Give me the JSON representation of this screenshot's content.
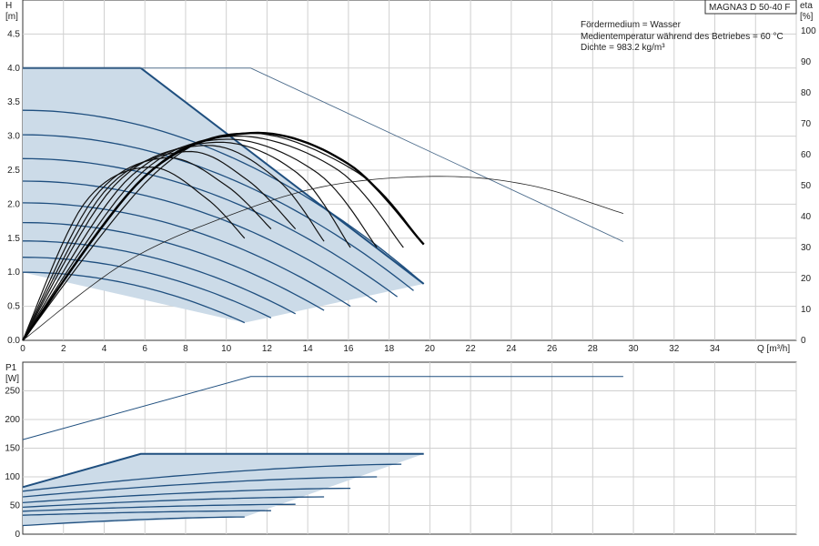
{
  "chart_data": [
    {
      "type": "line",
      "model": "MAGNA3 D 50-40 F",
      "info": [
        "Fördermedium = Wasser",
        "Medientemperatur während des Betriebes = 60 °C",
        "Dichte = 983.2 kg/m³"
      ],
      "ylabel_head": [
        "H",
        "[m]"
      ],
      "ylabel_eta": [
        "eta",
        "[%]"
      ],
      "xlabel": "Q [m³/h]",
      "xlim": [
        0,
        38
      ],
      "ylim": [
        0,
        5.0
      ],
      "eta_lim": [
        0,
        110
      ],
      "xticks": [
        "0",
        "2",
        "4",
        "6",
        "8",
        "10",
        "12",
        "14",
        "16",
        "18",
        "20",
        "22",
        "24",
        "26",
        "28",
        "30",
        "32",
        "34"
      ],
      "yticks": [
        "0.0",
        "0.5",
        "1.0",
        "1.5",
        "2.0",
        "2.5",
        "3.0",
        "3.5",
        "4.0",
        "4.5"
      ],
      "eta_ticks": [
        "0",
        "10",
        "20",
        "30",
        "40",
        "50",
        "60",
        "70",
        "80",
        "90",
        "100"
      ],
      "grid": true,
      "operating_area": [
        [
          0,
          4.0
        ],
        [
          5.8,
          4.0
        ],
        [
          19.7,
          0.83
        ],
        [
          10.9,
          0.26
        ],
        [
          0,
          1.0
        ]
      ],
      "head_curves": [
        {
          "q_max": 10.9,
          "h0": 1.0,
          "h_end": 0.26
        },
        {
          "q_max": 12.2,
          "h0": 1.22,
          "h_end": 0.33
        },
        {
          "q_max": 13.4,
          "h0": 1.46,
          "h_end": 0.39
        },
        {
          "q_max": 14.8,
          "h0": 1.73,
          "h_end": 0.44
        },
        {
          "q_max": 16.1,
          "h0": 2.02,
          "h_end": 0.5
        },
        {
          "q_max": 17.4,
          "h0": 2.34,
          "h_end": 0.56
        },
        {
          "q_max": 18.4,
          "h0": 2.67,
          "h_end": 0.64
        },
        {
          "q_max": 19.2,
          "h0": 3.02,
          "h_end": 0.73
        },
        {
          "q_max": 19.7,
          "h0": 3.38,
          "h_end": 0.83
        }
      ],
      "eta_curves": [
        {
          "q": [
            0,
            3,
            6.2,
            9,
            10.9
          ],
          "eta": [
            0,
            44,
            56,
            46,
            33
          ]
        },
        {
          "q": [
            0,
            3.5,
            7,
            10,
            12.2
          ],
          "eta": [
            0,
            46,
            59,
            50,
            36
          ]
        },
        {
          "q": [
            0,
            4,
            8,
            11,
            13.4
          ],
          "eta": [
            0,
            48,
            61,
            52,
            36
          ]
        },
        {
          "q": [
            0,
            4.5,
            9,
            12.5,
            14.8
          ],
          "eta": [
            0,
            50,
            63,
            52,
            32
          ]
        },
        {
          "q": [
            0,
            5,
            9.5,
            13.5,
            16.1
          ],
          "eta": [
            0,
            51,
            64,
            54,
            30
          ]
        },
        {
          "q": [
            0,
            5.5,
            10,
            14.5,
            17.4
          ],
          "eta": [
            0,
            52,
            65,
            54,
            30
          ]
        },
        {
          "q": [
            0,
            6,
            10.5,
            15.5,
            18.7
          ],
          "eta": [
            0,
            53,
            66,
            55,
            30
          ]
        },
        {
          "q": [
            0,
            6.5,
            11.2,
            16.5,
            19.7
          ],
          "eta": [
            0,
            54,
            67,
            54,
            31
          ]
        }
      ],
      "eta_bold": {
        "q": [
          0,
          6,
          11.2,
          16,
          19.7
        ],
        "eta": [
          0,
          53,
          67,
          57,
          31
        ]
      },
      "eta_overall": {
        "q": [
          0,
          5,
          10,
          15,
          20.5,
          25,
          29.5
        ],
        "eta": [
          0,
          25,
          40,
          50,
          53,
          50,
          41
        ]
      },
      "head_max_thin": {
        "q": [
          0,
          11.2,
          29.5
        ],
        "h": [
          4.0,
          4.0,
          1.45
        ]
      }
    },
    {
      "type": "line",
      "ylabel": [
        "P1",
        "[W]"
      ],
      "xlim": [
        0,
        38
      ],
      "ylim": [
        0,
        300
      ],
      "yticks": [
        "0",
        "50",
        "100",
        "150",
        "200",
        "250"
      ],
      "grid": true,
      "power_area": [
        [
          0,
          82
        ],
        [
          5.8,
          140
        ],
        [
          19.7,
          140
        ],
        [
          10.9,
          30
        ],
        [
          0,
          15
        ]
      ],
      "power_curves": [
        {
          "q": [
            0,
            5.8,
            19.7
          ],
          "p": [
            82,
            140,
            140
          ]
        },
        {
          "q": [
            0,
            18.6
          ],
          "p": [
            75,
            122
          ]
        },
        {
          "q": [
            0,
            17.4
          ],
          "p": [
            65,
            100
          ]
        },
        {
          "q": [
            0,
            16.1
          ],
          "p": [
            55,
            80
          ]
        },
        {
          "q": [
            0,
            14.8
          ],
          "p": [
            47,
            65
          ]
        },
        {
          "q": [
            0,
            13.4
          ],
          "p": [
            40,
            52
          ]
        },
        {
          "q": [
            0,
            12.2
          ],
          "p": [
            33,
            41
          ]
        },
        {
          "q": [
            0,
            10.9
          ],
          "p": [
            15,
            30
          ]
        }
      ],
      "power_max_thin": {
        "q": [
          0,
          11.2,
          29.5
        ],
        "p": [
          165,
          275,
          275
        ]
      }
    }
  ]
}
